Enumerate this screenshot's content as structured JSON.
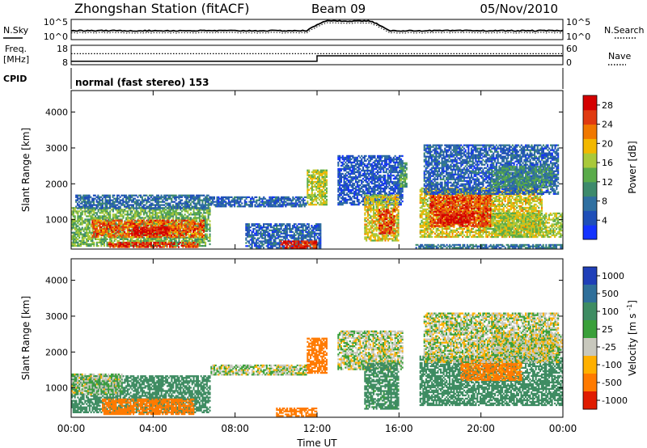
{
  "header": {
    "station": "Zhongshan Station (fitACF)",
    "beam": "Beam 09",
    "date": "05/Nov/2010"
  },
  "param_panels": {
    "nsky_label": "N.Sky",
    "nsky_tick_top": "10^5",
    "nsky_tick_bottom": "10^0",
    "nsearch_label": "N.Search",
    "freq_label_1": "Freq.",
    "freq_label_2": "[MHz]",
    "freq_tick_top": "18",
    "freq_tick_bottom": "8",
    "nave_label": "Nave",
    "nave_tick_top": "60",
    "nave_tick_bottom": "0",
    "cpid_label": "CPID",
    "cpid_text": "normal (fast stereo) 153"
  },
  "chart_data": [
    {
      "type": "heatmap",
      "name": "power",
      "xlabel": "Time UT",
      "ylabel": "Slant Range [km]",
      "x_ticks": [
        "00:00",
        "04:00",
        "08:00",
        "12:00",
        "16:00",
        "20:00",
        "00:00"
      ],
      "xlim_hours": [
        0,
        24
      ],
      "y_ticks": [
        1000,
        2000,
        3000,
        4000
      ],
      "ylim": [
        180,
        4600
      ],
      "colorbar": {
        "label": "Power [dB]",
        "ticks": [
          4,
          8,
          12,
          16,
          20,
          24,
          28
        ],
        "range": [
          0,
          30
        ],
        "colors": [
          "#1433ff",
          "#1f4fb8",
          "#2f6fa0",
          "#3d8a6c",
          "#5aab4a",
          "#a9c93a",
          "#f2b800",
          "#f07800",
          "#e03a10",
          "#d40000"
        ]
      },
      "regions": [
        {
          "t0": 0.0,
          "t1": 6.8,
          "r0": 250,
          "r1": 1350,
          "level": 14
        },
        {
          "t0": 1.0,
          "t1": 6.5,
          "r0": 500,
          "r1": 1000,
          "level": 24
        },
        {
          "t0": 3.0,
          "t1": 4.8,
          "r0": 550,
          "r1": 800,
          "level": 29
        },
        {
          "t0": 1.8,
          "t1": 6.2,
          "r0": 220,
          "r1": 380,
          "level": 26
        },
        {
          "t0": 0.2,
          "t1": 6.8,
          "r0": 1300,
          "r1": 1700,
          "level": 7
        },
        {
          "t0": 6.8,
          "t1": 11.5,
          "r0": 1350,
          "r1": 1650,
          "level": 6
        },
        {
          "t0": 8.5,
          "t1": 12.2,
          "r0": 200,
          "r1": 900,
          "level": 6
        },
        {
          "t0": 10.2,
          "t1": 12.0,
          "r0": 200,
          "r1": 420,
          "level": 27
        },
        {
          "t0": 11.5,
          "t1": 12.5,
          "r0": 1400,
          "r1": 2400,
          "level": 17
        },
        {
          "t0": 13.0,
          "t1": 16.2,
          "r0": 1400,
          "r1": 2800,
          "level": 5
        },
        {
          "t0": 14.3,
          "t1": 16.0,
          "r0": 400,
          "r1": 1700,
          "level": 18
        },
        {
          "t0": 15.0,
          "t1": 15.8,
          "r0": 600,
          "r1": 1300,
          "level": 26
        },
        {
          "t0": 16.0,
          "t1": 16.4,
          "r0": 1900,
          "r1": 2600,
          "level": 12
        },
        {
          "t0": 17.0,
          "t1": 23.0,
          "r0": 500,
          "r1": 1900,
          "level": 18
        },
        {
          "t0": 17.5,
          "t1": 20.5,
          "r0": 800,
          "r1": 1700,
          "level": 25
        },
        {
          "t0": 18.0,
          "t1": 19.5,
          "r0": 900,
          "r1": 1200,
          "level": 29
        },
        {
          "t0": 20.5,
          "t1": 24.0,
          "r0": 500,
          "r1": 1200,
          "level": 16
        },
        {
          "t0": 17.2,
          "t1": 23.8,
          "r0": 1700,
          "r1": 3100,
          "level": 6
        },
        {
          "t0": 20.5,
          "t1": 23.5,
          "r0": 1900,
          "r1": 2500,
          "level": 11
        },
        {
          "t0": 16.8,
          "t1": 24.0,
          "r0": 200,
          "r1": 320,
          "level": 8
        }
      ]
    },
    {
      "type": "heatmap",
      "name": "velocity",
      "xlabel": "Time UT",
      "ylabel": "Slant Range [km]",
      "x_ticks": [
        "00:00",
        "04:00",
        "08:00",
        "12:00",
        "16:00",
        "20:00",
        "00:00"
      ],
      "xlim_hours": [
        0,
        24
      ],
      "y_ticks": [
        1000,
        2000,
        3000,
        4000
      ],
      "ylim": [
        180,
        4600
      ],
      "colorbar": {
        "label": "Velocity [m s^-1]",
        "tick_labels": [
          "1000",
          "500",
          "100",
          "25",
          "-25",
          "-100",
          "-500",
          "-1000"
        ],
        "colors": [
          "#1f3fb8",
          "#2f6f9a",
          "#3e8c62",
          "#3aa03a",
          "#c8c8bd",
          "#ffb000",
          "#ff7a00",
          "#e01b00"
        ]
      },
      "regions": [
        {
          "t0": 0.0,
          "t1": 6.8,
          "r0": 300,
          "r1": 1350,
          "v": 200
        },
        {
          "t0": 1.5,
          "t1": 6.0,
          "r0": 250,
          "r1": 700,
          "v": -300
        },
        {
          "t0": 0.0,
          "t1": 2.5,
          "r0": 800,
          "r1": 1400,
          "v": 20
        },
        {
          "t0": 6.8,
          "t1": 11.5,
          "r0": 1350,
          "r1": 1650,
          "v": 10
        },
        {
          "t0": 10.0,
          "t1": 12.0,
          "r0": 200,
          "r1": 450,
          "v": -200
        },
        {
          "t0": 11.5,
          "t1": 12.5,
          "r0": 1400,
          "r1": 2400,
          "v": -300
        },
        {
          "t0": 13.0,
          "t1": 16.2,
          "r0": 1500,
          "r1": 2600,
          "v": 10
        },
        {
          "t0": 14.3,
          "t1": 16.0,
          "r0": 400,
          "r1": 1700,
          "v": 150
        },
        {
          "t0": 17.0,
          "t1": 24.0,
          "r0": 500,
          "r1": 1900,
          "v": 250
        },
        {
          "t0": 19.0,
          "t1": 22.0,
          "r0": 1200,
          "r1": 1800,
          "v": -150
        },
        {
          "t0": 17.2,
          "t1": 23.8,
          "r0": 1700,
          "r1": 3100,
          "v": 5
        },
        {
          "t0": 20.5,
          "t1": 24.0,
          "r0": 1900,
          "r1": 2500,
          "v": 0
        }
      ]
    }
  ],
  "series_timeline": {
    "nsky_level": 2.2,
    "nsky_bump": {
      "t0": 11.5,
      "t1": 15.5,
      "level": 4.6
    },
    "freq_mhz": [
      {
        "t0": 0.0,
        "t1": 12.0,
        "value": 9.8
      },
      {
        "t0": 12.0,
        "t1": 24.0,
        "value": 12.6
      }
    ],
    "nave": 34
  }
}
